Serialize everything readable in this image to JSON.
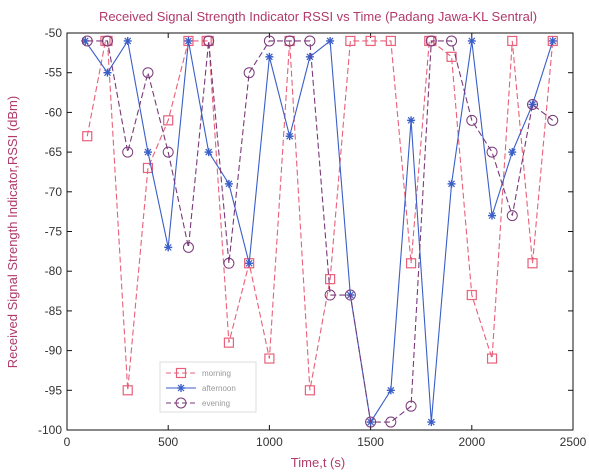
{
  "chart_data": {
    "type": "line",
    "title": "Received Signal Strength Indicator RSSI vs Time (Padang Jawa-KL Sentral)",
    "xlabel": "Time,t (s)",
    "ylabel": "Received Signal Strength Indicator,RSSI (dBm)",
    "xlim": [
      0,
      2500
    ],
    "ylim": [
      -100,
      -50
    ],
    "xticks": [
      "0",
      "500",
      "1000",
      "1500",
      "2000",
      "2500"
    ],
    "yticks": [
      "-50",
      "-55",
      "-60",
      "-65",
      "-70",
      "-75",
      "-80",
      "-85",
      "-90",
      "-95",
      "-100"
    ],
    "xtick_values": [
      0,
      500,
      1000,
      1500,
      2000,
      2500
    ],
    "ytick_values": [
      -50,
      -55,
      -60,
      -65,
      -70,
      -75,
      -80,
      -85,
      -90,
      -95,
      -100
    ],
    "grid": false,
    "legend_position": "bottom-left",
    "series": [
      {
        "name": "morning",
        "color": "#e8607a",
        "dash": "dashed",
        "marker": "square",
        "x": [
          100,
          190,
          200,
          300,
          400,
          500,
          600,
          690,
          700,
          800,
          900,
          1000,
          1100,
          1200,
          1300,
          1400,
          1500,
          1600,
          1700,
          1790,
          1800,
          1900,
          2000,
          2100,
          2200,
          2300,
          2400
        ],
        "y": [
          -63,
          -51,
          -51,
          -95,
          -67,
          -61,
          -51,
          -51,
          -51,
          -89,
          -79,
          -91,
          -51,
          -95,
          -81,
          -51,
          -51,
          -51,
          -79,
          -51,
          -51,
          -53,
          -83,
          -91,
          -51,
          -79,
          -51
        ]
      },
      {
        "name": "afternoon",
        "color": "#3a5ec8",
        "dash": "solid",
        "marker": "star",
        "x": [
          90,
          200,
          300,
          400,
          500,
          600,
          700,
          800,
          900,
          1000,
          1100,
          1200,
          1300,
          1400,
          1500,
          1600,
          1700,
          1800,
          1900,
          2000,
          2100,
          2200,
          2300,
          2400
        ],
        "y": [
          -51,
          -55,
          -51,
          -65,
          -77,
          -51,
          -65,
          -69,
          -79,
          -53,
          -63,
          -53,
          -51,
          -83,
          -99,
          -95,
          -61,
          -99,
          -69,
          -51,
          -73,
          -65,
          -59,
          -51
        ]
      },
      {
        "name": "evening",
        "color": "#7a3a7a",
        "dash": "dashed",
        "marker": "circle",
        "x": [
          100,
          200,
          300,
          400,
          500,
          600,
          700,
          800,
          900,
          1000,
          1100,
          1200,
          1300,
          1400,
          1500,
          1600,
          1700,
          1800,
          1900,
          2000,
          2100,
          2200,
          2300,
          2400
        ],
        "y": [
          -51,
          -51,
          -65,
          -55,
          -65,
          -77,
          -51,
          -79,
          -55,
          -51,
          -51,
          -51,
          -83,
          -83,
          -99,
          -99,
          -97,
          -51,
          -51,
          -61,
          -65,
          -73,
          -59,
          -61
        ]
      }
    ]
  }
}
